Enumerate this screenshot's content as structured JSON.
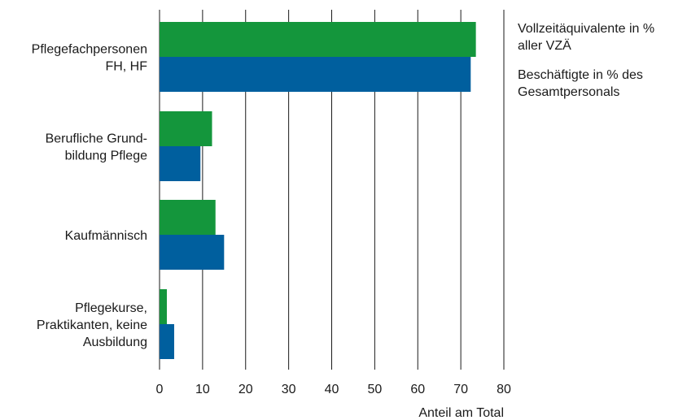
{
  "chart_data": {
    "type": "bar",
    "orientation": "horizontal",
    "categories": [
      [
        "Pflegefachpersonen",
        "FH, HF"
      ],
      [
        "Berufliche Grund-",
        "bildung Pflege"
      ],
      [
        "Kaufmännisch"
      ],
      [
        "Pflegekurse,",
        "Praktikanten, keine",
        "Ausbildung"
      ]
    ],
    "series": [
      {
        "name": [
          "Vollzeitäquivalente in %",
          "aller VZÄ"
        ],
        "color": "#14963c",
        "values": [
          73.5,
          12.2,
          13.0,
          1.7
        ]
      },
      {
        "name": [
          "Beschäftigte in % des",
          "Gesamtpersonals"
        ],
        "color": "#005f9e",
        "values": [
          72.3,
          9.5,
          15.0,
          3.4
        ]
      }
    ],
    "xlabel": "Anteil am Total",
    "xlim": [
      0,
      80
    ],
    "xticks": [
      0,
      10,
      20,
      30,
      40,
      50,
      60,
      70,
      80
    ],
    "grid": "vertical",
    "legend_position": "right"
  }
}
